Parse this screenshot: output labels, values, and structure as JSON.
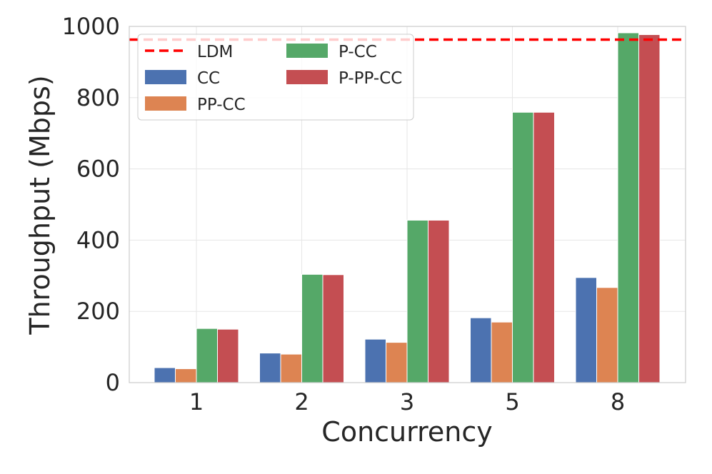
{
  "chart_data": {
    "type": "bar",
    "title": "",
    "xlabel": "Concurrency",
    "ylabel": "Throughput (Mbps)",
    "categories": [
      "1",
      "2",
      "3",
      "5",
      "8"
    ],
    "ylim": [
      0,
      1000
    ],
    "yticks": [
      0,
      200,
      400,
      600,
      800,
      1000
    ],
    "grid": true,
    "legend_position": "top-left",
    "series": [
      {
        "name": "CC",
        "color": "#4c72b0",
        "values": [
          42,
          83,
          122,
          182,
          295
        ]
      },
      {
        "name": "PP-CC",
        "color": "#dd8452",
        "values": [
          39,
          80,
          113,
          170,
          267
        ]
      },
      {
        "name": "P-CC",
        "color": "#55a868",
        "values": [
          152,
          304,
          456,
          759,
          982
        ]
      },
      {
        "name": "P-PP-CC",
        "color": "#c44e52",
        "values": [
          150,
          303,
          456,
          759,
          977
        ]
      }
    ],
    "reference_lines": [
      {
        "name": "LDM",
        "value": 963,
        "color": "#ff0000",
        "style": "dashed"
      }
    ]
  }
}
